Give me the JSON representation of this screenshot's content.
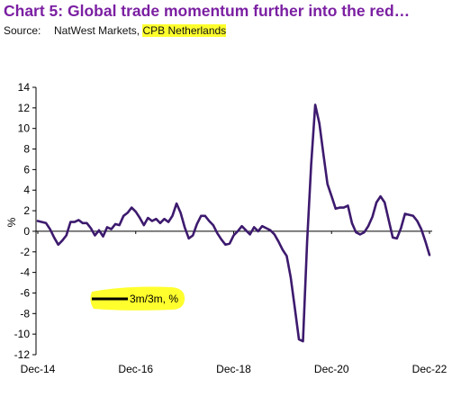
{
  "title": "Chart 5: Global trade momentum further into the red…",
  "source": {
    "label": "Source:",
    "text": "NatWest Markets, ",
    "highlighted": "CPB Netherlands"
  },
  "colors": {
    "title": "#7b1fa2",
    "line": "#3d1a6e",
    "highlight": "#ffff2e"
  },
  "chart_data": {
    "type": "line",
    "ylabel": "%",
    "ylim": [
      -12,
      14
    ],
    "yticks": [
      -12,
      -10,
      -8,
      -6,
      -4,
      -2,
      0,
      2,
      4,
      6,
      8,
      10,
      12,
      14
    ],
    "xticks": [
      "Dec-14",
      "Dec-16",
      "Dec-18",
      "Dec-20",
      "Dec-22"
    ],
    "xrange": [
      "Dec-14",
      "Dec-22"
    ],
    "grid": false,
    "legend_position": "bottom-left",
    "series": [
      {
        "name": "3m/3m, %",
        "x": [
          "Dec-14",
          "Jan-15",
          "Feb-15",
          "Mar-15",
          "Apr-15",
          "May-15",
          "Jun-15",
          "Jul-15",
          "Aug-15",
          "Sep-15",
          "Oct-15",
          "Nov-15",
          "Dec-15",
          "Jan-16",
          "Feb-16",
          "Mar-16",
          "Apr-16",
          "May-16",
          "Jun-16",
          "Jul-16",
          "Aug-16",
          "Sep-16",
          "Oct-16",
          "Nov-16",
          "Dec-16",
          "Jan-17",
          "Feb-17",
          "Mar-17",
          "Apr-17",
          "May-17",
          "Jun-17",
          "Jul-17",
          "Aug-17",
          "Sep-17",
          "Oct-17",
          "Nov-17",
          "Dec-17",
          "Jan-18",
          "Feb-18",
          "Mar-18",
          "Apr-18",
          "May-18",
          "Jun-18",
          "Jul-18",
          "Aug-18",
          "Sep-18",
          "Oct-18",
          "Nov-18",
          "Dec-18",
          "Jan-19",
          "Feb-19",
          "Mar-19",
          "Apr-19",
          "May-19",
          "Jun-19",
          "Jul-19",
          "Aug-19",
          "Sep-19",
          "Oct-19",
          "Nov-19",
          "Dec-19",
          "Jan-20",
          "Feb-20",
          "Mar-20",
          "Apr-20",
          "May-20",
          "Jun-20",
          "Jul-20",
          "Aug-20",
          "Sep-20",
          "Oct-20",
          "Nov-20",
          "Dec-20",
          "Jan-21",
          "Feb-21",
          "Mar-21",
          "Apr-21",
          "May-21",
          "Jun-21",
          "Jul-21",
          "Aug-21",
          "Sep-21",
          "Oct-21",
          "Nov-21",
          "Dec-21",
          "Jan-22",
          "Feb-22",
          "Mar-22",
          "Apr-22",
          "May-22",
          "Jun-22",
          "Jul-22",
          "Aug-22",
          "Sep-22",
          "Oct-22",
          "Nov-22",
          "Dec-22"
        ],
        "values": [
          1.0,
          0.9,
          0.8,
          0.2,
          -0.6,
          -1.3,
          -0.9,
          -0.4,
          0.9,
          0.9,
          1.1,
          0.8,
          0.8,
          0.3,
          -0.4,
          0.1,
          -0.5,
          0.4,
          0.2,
          0.7,
          0.6,
          1.5,
          1.8,
          2.3,
          1.9,
          1.3,
          0.6,
          1.3,
          1.0,
          1.2,
          0.8,
          1.2,
          0.9,
          1.5,
          2.7,
          1.8,
          0.4,
          -0.7,
          -0.4,
          0.7,
          1.5,
          1.5,
          1.0,
          0.6,
          -0.2,
          -0.8,
          -1.3,
          -1.2,
          -0.4,
          0.0,
          0.5,
          0.1,
          -0.3,
          0.4,
          0.0,
          0.5,
          0.3,
          0.1,
          -0.3,
          -1.0,
          -1.8,
          -2.4,
          -4.5,
          -7.5,
          -10.5,
          -10.7,
          -1.0,
          6.5,
          12.3,
          10.5,
          7.5,
          4.6,
          3.4,
          2.2,
          2.3,
          2.3,
          2.5,
          0.8,
          -0.1,
          -0.3,
          -0.1,
          0.5,
          1.4,
          2.8,
          3.4,
          2.8,
          1.1,
          -0.6,
          -0.7,
          0.3,
          1.7,
          1.6,
          1.5,
          1.0,
          0.2,
          -1.0,
          -2.3
        ]
      }
    ]
  }
}
